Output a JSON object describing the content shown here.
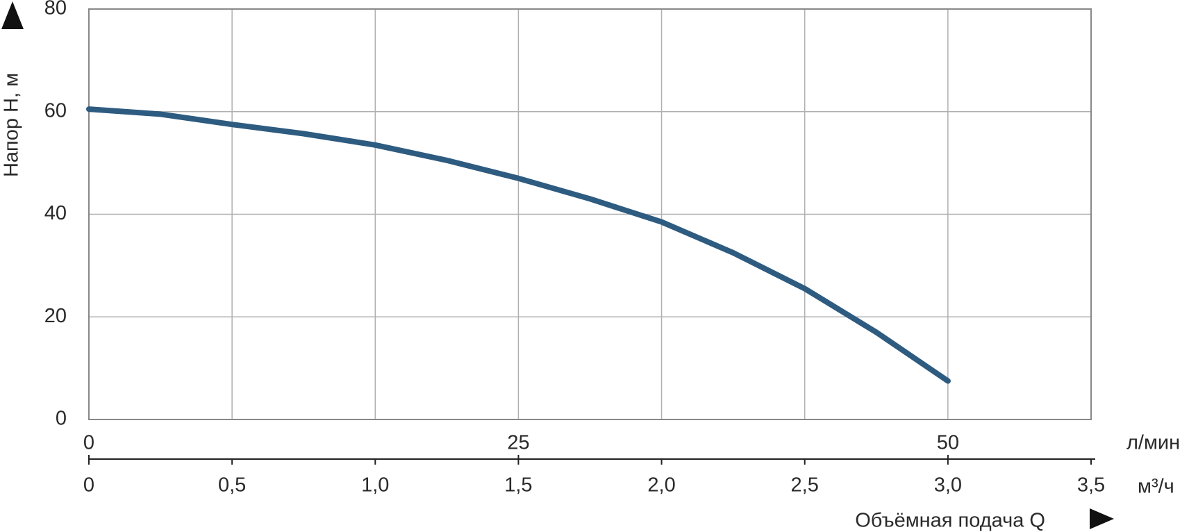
{
  "chart_data": {
    "type": "line",
    "y_label": "Напор H, м",
    "x_label": "Объёмная подача Q",
    "x_unit": "м³/ч",
    "x2_unit": "л/мин",
    "x": [
      0,
      0.25,
      0.5,
      0.75,
      1.0,
      1.25,
      1.5,
      1.75,
      2.0,
      2.25,
      2.5,
      2.75,
      3.0
    ],
    "values": [
      60.5,
      59.5,
      57.5,
      55.7,
      53.5,
      50.5,
      47,
      43,
      38.5,
      32.5,
      25.5,
      17,
      7.5
    ],
    "color": "#2e5b80",
    "xlim": [
      0,
      3.5
    ],
    "xticks": [
      0,
      {
        "value": 0.5,
        "label": "0,5"
      },
      {
        "value": 1,
        "label": "1,0"
      },
      {
        "value": 1.5,
        "label": "1,5"
      },
      {
        "value": 2,
        "label": "2,0"
      },
      {
        "value": 2.5,
        "label": "2,5"
      },
      {
        "value": 3,
        "label": "3,0"
      },
      {
        "value": 3.5,
        "label": "3,5"
      }
    ],
    "x2lim": [
      0,
      58.33
    ],
    "x2ticks": [
      0,
      25,
      50
    ],
    "ylim": [
      0,
      80
    ],
    "yticks": [
      0,
      20,
      40,
      60,
      80
    ],
    "grid": true
  }
}
